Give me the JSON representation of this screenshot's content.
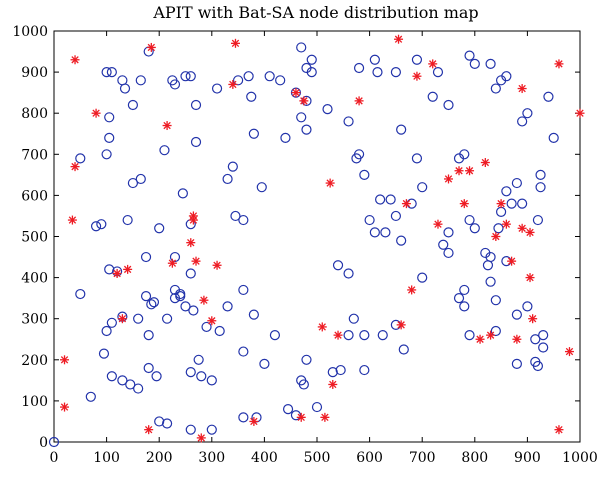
{
  "chart_data": {
    "type": "scatter",
    "title": "APIT with Bat-SA node distribution map",
    "xlabel": "",
    "ylabel": "",
    "xlim": [
      0,
      1000
    ],
    "ylim": [
      0,
      1000
    ],
    "xticks": [
      0,
      100,
      200,
      300,
      400,
      500,
      600,
      700,
      800,
      900,
      1000
    ],
    "yticks": [
      0,
      100,
      200,
      300,
      400,
      500,
      600,
      700,
      800,
      900,
      1000
    ],
    "grid": false,
    "legend": "none",
    "series": [
      {
        "marker": "circle",
        "color": "#2233aa",
        "points": [
          [
            0,
            0
          ],
          [
            70,
            110
          ],
          [
            110,
            160
          ],
          [
            130,
            150
          ],
          [
            145,
            140
          ],
          [
            160,
            130
          ],
          [
            180,
            260
          ],
          [
            180,
            180
          ],
          [
            195,
            160
          ],
          [
            200,
            50
          ],
          [
            215,
            45
          ],
          [
            240,
            360
          ],
          [
            250,
            330
          ],
          [
            260,
            30
          ],
          [
            260,
            170
          ],
          [
            280,
            160
          ],
          [
            300,
            150
          ],
          [
            300,
            30
          ],
          [
            360,
            60
          ],
          [
            385,
            60
          ],
          [
            380,
            310
          ],
          [
            420,
            260
          ],
          [
            445,
            80
          ],
          [
            460,
            65
          ],
          [
            470,
            150
          ],
          [
            475,
            140
          ],
          [
            480,
            200
          ],
          [
            500,
            85
          ],
          [
            530,
            170
          ],
          [
            545,
            175
          ],
          [
            560,
            260
          ],
          [
            590,
            260
          ],
          [
            590,
            175
          ],
          [
            625,
            260
          ],
          [
            650,
            285
          ],
          [
            665,
            225
          ],
          [
            700,
            400
          ],
          [
            740,
            480
          ],
          [
            750,
            460
          ],
          [
            770,
            350
          ],
          [
            780,
            370
          ],
          [
            780,
            330
          ],
          [
            790,
            260
          ],
          [
            830,
            390
          ],
          [
            840,
            345
          ],
          [
            840,
            270
          ],
          [
            860,
            440
          ],
          [
            880,
            310
          ],
          [
            880,
            190
          ],
          [
            900,
            330
          ],
          [
            915,
            250
          ],
          [
            915,
            195
          ],
          [
            920,
            185
          ],
          [
            930,
            230
          ],
          [
            930,
            260
          ],
          [
            50,
            360
          ],
          [
            95,
            215
          ],
          [
            100,
            270
          ],
          [
            110,
            290
          ],
          [
            130,
            305
          ],
          [
            160,
            300
          ],
          [
            175,
            355
          ],
          [
            185,
            335
          ],
          [
            190,
            340
          ],
          [
            215,
            300
          ],
          [
            230,
            370
          ],
          [
            230,
            350
          ],
          [
            240,
            355
          ],
          [
            260,
            410
          ],
          [
            275,
            200
          ],
          [
            290,
            280
          ],
          [
            315,
            270
          ],
          [
            330,
            330
          ],
          [
            360,
            370
          ],
          [
            360,
            220
          ],
          [
            400,
            190
          ],
          [
            80,
            525
          ],
          [
            90,
            530
          ],
          [
            105,
            420
          ],
          [
            120,
            415
          ],
          [
            140,
            540
          ],
          [
            150,
            630
          ],
          [
            165,
            640
          ],
          [
            175,
            450
          ],
          [
            200,
            520
          ],
          [
            230,
            450
          ],
          [
            245,
            605
          ],
          [
            260,
            530
          ],
          [
            265,
            320
          ],
          [
            330,
            640
          ],
          [
            340,
            670
          ],
          [
            345,
            550
          ],
          [
            360,
            540
          ],
          [
            375,
            840
          ],
          [
            350,
            880
          ],
          [
            380,
            750
          ],
          [
            395,
            620
          ],
          [
            430,
            880
          ],
          [
            440,
            740
          ],
          [
            470,
            790
          ],
          [
            480,
            760
          ],
          [
            490,
            930
          ],
          [
            480,
            830
          ],
          [
            520,
            810
          ],
          [
            540,
            430
          ],
          [
            560,
            410
          ],
          [
            570,
            300
          ],
          [
            575,
            690
          ],
          [
            580,
            700
          ],
          [
            600,
            540
          ],
          [
            610,
            510
          ],
          [
            620,
            590
          ],
          [
            630,
            510
          ],
          [
            640,
            590
          ],
          [
            650,
            550
          ],
          [
            660,
            490
          ],
          [
            680,
            580
          ],
          [
            690,
            690
          ],
          [
            700,
            620
          ],
          [
            720,
            840
          ],
          [
            750,
            510
          ],
          [
            770,
            690
          ],
          [
            780,
            700
          ],
          [
            790,
            540
          ],
          [
            800,
            520
          ],
          [
            820,
            460
          ],
          [
            825,
            430
          ],
          [
            830,
            450
          ],
          [
            845,
            520
          ],
          [
            850,
            560
          ],
          [
            860,
            610
          ],
          [
            870,
            580
          ],
          [
            880,
            630
          ],
          [
            890,
            580
          ],
          [
            920,
            540
          ],
          [
            925,
            650
          ],
          [
            925,
            620
          ],
          [
            940,
            840
          ],
          [
            950,
            740
          ],
          [
            50,
            690
          ],
          [
            100,
            900
          ],
          [
            105,
            740
          ],
          [
            100,
            700
          ],
          [
            105,
            790
          ],
          [
            110,
            900
          ],
          [
            130,
            880
          ],
          [
            135,
            860
          ],
          [
            150,
            820
          ],
          [
            165,
            880
          ],
          [
            180,
            950
          ],
          [
            225,
            880
          ],
          [
            230,
            870
          ],
          [
            250,
            890
          ],
          [
            260,
            890
          ],
          [
            270,
            820
          ],
          [
            270,
            730
          ],
          [
            310,
            860
          ],
          [
            370,
            890
          ],
          [
            410,
            890
          ],
          [
            460,
            850
          ],
          [
            470,
            960
          ],
          [
            480,
            910
          ],
          [
            490,
            900
          ],
          [
            580,
            910
          ],
          [
            610,
            930
          ],
          [
            615,
            900
          ],
          [
            650,
            900
          ],
          [
            660,
            760
          ],
          [
            690,
            930
          ],
          [
            730,
            900
          ],
          [
            750,
            820
          ],
          [
            790,
            940
          ],
          [
            800,
            920
          ],
          [
            830,
            920
          ],
          [
            840,
            860
          ],
          [
            850,
            880
          ],
          [
            860,
            890
          ],
          [
            890,
            780
          ],
          [
            900,
            800
          ],
          [
            210,
            710
          ],
          [
            560,
            780
          ],
          [
            590,
            650
          ]
        ]
      },
      {
        "marker": "star",
        "color": "#ee1c24",
        "points": [
          [
            20,
            200
          ],
          [
            20,
            85
          ],
          [
            35,
            540
          ],
          [
            40,
            670
          ],
          [
            40,
            930
          ],
          [
            80,
            800
          ],
          [
            120,
            410
          ],
          [
            130,
            300
          ],
          [
            140,
            420
          ],
          [
            180,
            30
          ],
          [
            185,
            960
          ],
          [
            215,
            770
          ],
          [
            225,
            435
          ],
          [
            260,
            485
          ],
          [
            265,
            540
          ],
          [
            265,
            550
          ],
          [
            270,
            440
          ],
          [
            280,
            10
          ],
          [
            285,
            345
          ],
          [
            300,
            295
          ],
          [
            310,
            430
          ],
          [
            340,
            870
          ],
          [
            345,
            970
          ],
          [
            380,
            50
          ],
          [
            460,
            850
          ],
          [
            470,
            60
          ],
          [
            475,
            830
          ],
          [
            510,
            280
          ],
          [
            515,
            60
          ],
          [
            525,
            630
          ],
          [
            530,
            140
          ],
          [
            540,
            260
          ],
          [
            580,
            830
          ],
          [
            655,
            980
          ],
          [
            660,
            285
          ],
          [
            670,
            580
          ],
          [
            680,
            370
          ],
          [
            690,
            890
          ],
          [
            720,
            920
          ],
          [
            730,
            530
          ],
          [
            750,
            640
          ],
          [
            770,
            660
          ],
          [
            780,
            580
          ],
          [
            790,
            660
          ],
          [
            810,
            250
          ],
          [
            820,
            680
          ],
          [
            830,
            260
          ],
          [
            840,
            500
          ],
          [
            850,
            580
          ],
          [
            860,
            530
          ],
          [
            870,
            440
          ],
          [
            880,
            250
          ],
          [
            890,
            520
          ],
          [
            890,
            860
          ],
          [
            905,
            400
          ],
          [
            905,
            510
          ],
          [
            910,
            300
          ],
          [
            960,
            920
          ],
          [
            960,
            30
          ],
          [
            980,
            220
          ],
          [
            1000,
            800
          ]
        ]
      }
    ]
  }
}
